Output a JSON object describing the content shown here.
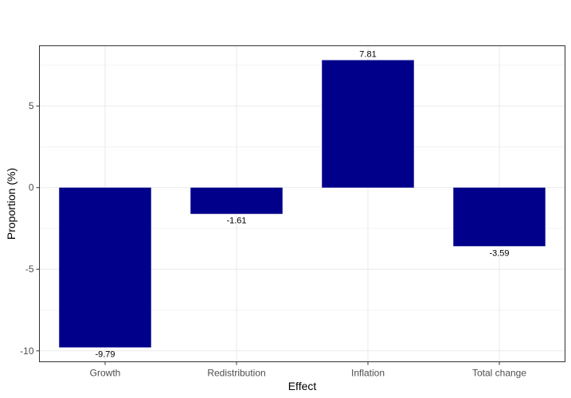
{
  "chart_data": {
    "type": "bar",
    "title": "",
    "xlabel": "Effect",
    "ylabel": "Proportion (%)",
    "categories": [
      "Growth",
      "Redistribution",
      "Inflation",
      "Total change"
    ],
    "values": [
      -9.79,
      -1.61,
      7.81,
      -3.59
    ],
    "data_labels": [
      "-9.79",
      "-1.61",
      "7.81",
      "-3.59"
    ],
    "ylim": [
      -10.67,
      8.69
    ],
    "yticks": [
      -10,
      -5,
      0,
      5
    ],
    "ytick_labels": [
      "-10",
      "-5",
      "0",
      "5"
    ],
    "grid": true,
    "legend": "none",
    "colors": {
      "bar": "#00008b",
      "grid": "#ebebeb",
      "panel_border": "#333333"
    }
  }
}
